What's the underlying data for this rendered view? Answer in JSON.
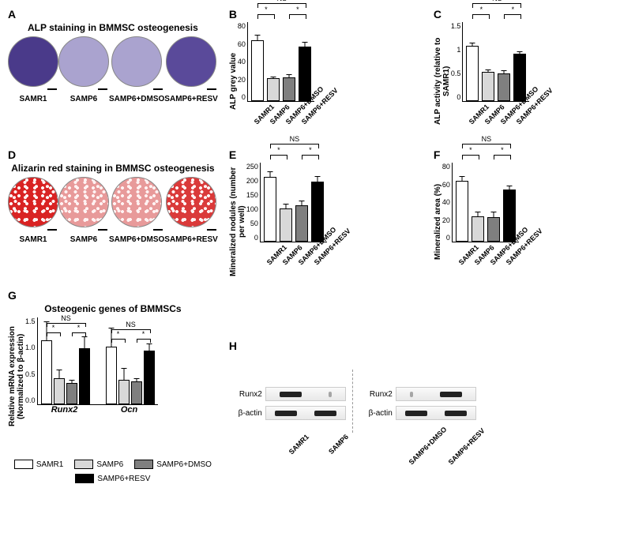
{
  "colors": {
    "samr1": "#ffffff",
    "samp6": "#d8d8d8",
    "samp6_dmso": "#7f7f7f",
    "samp6_resv": "#000000",
    "alp_purple_dark": "#4a3a8a",
    "alp_purple_light": "#aaa3cf",
    "alizarin_red": "#d92323",
    "alizarin_light": "#e89a9a"
  },
  "panelA": {
    "label": "A",
    "title": "ALP staining in BMMSC osteogenesis",
    "wells": [
      {
        "label": "SAMR1",
        "color": "#4a3a8a"
      },
      {
        "label": "SAMP6",
        "color": "#aaa3cf"
      },
      {
        "label": "SAMP6+DMSO",
        "color": "#aaa3cf"
      },
      {
        "label": "SAMP6+RESV",
        "color": "#5a4a9a"
      }
    ]
  },
  "panelB": {
    "label": "B",
    "ylabel": "ALP grey value",
    "ylim": [
      0,
      80
    ],
    "ytick_step": 20,
    "categories": [
      "SAMR1",
      "SAMP6",
      "SAMP6+DMSO",
      "SAMP6+RESV"
    ],
    "values": [
      62,
      23,
      24,
      55
    ],
    "errors": [
      6,
      3,
      4,
      6
    ],
    "colors": [
      "#ffffff",
      "#d8d8d8",
      "#7f7f7f",
      "#000000"
    ],
    "sig": [
      {
        "from": 0,
        "to": 1,
        "label": "*",
        "level": 0
      },
      {
        "from": 2,
        "to": 3,
        "label": "*",
        "level": 0
      },
      {
        "from": 0,
        "to": 3,
        "label": "NS",
        "level": 1
      }
    ]
  },
  "panelC": {
    "label": "C",
    "ylabel": "ALP activity\n(relative to SAMR1)",
    "ylim": [
      0,
      1.5
    ],
    "ytick_step": 0.5,
    "categories": [
      "SAMR1",
      "SAMP6",
      "SAMP6+DMSO",
      "SAMP6+RESV"
    ],
    "values": [
      1.05,
      0.55,
      0.52,
      0.9
    ],
    "errors": [
      0.08,
      0.07,
      0.08,
      0.06
    ],
    "colors": [
      "#ffffff",
      "#d8d8d8",
      "#7f7f7f",
      "#000000"
    ],
    "sig": [
      {
        "from": 0,
        "to": 1,
        "label": "*",
        "level": 0
      },
      {
        "from": 2,
        "to": 3,
        "label": "*",
        "level": 0
      },
      {
        "from": 0,
        "to": 3,
        "label": "NS",
        "level": 1
      }
    ]
  },
  "panelD": {
    "label": "D",
    "title": "Alizarin red staining in BMMSC osteogenesis",
    "wells": [
      {
        "label": "SAMR1",
        "color": "#d92323"
      },
      {
        "label": "SAMP6",
        "color": "#e89a9a"
      },
      {
        "label": "SAMP6+DMSO",
        "color": "#e89a9a"
      },
      {
        "label": "SAMP6+RESV",
        "color": "#da3a3a"
      }
    ]
  },
  "panelE": {
    "label": "E",
    "ylabel": "Mineralized nodules\n(number per well)",
    "ylim": [
      0,
      250
    ],
    "ytick_step": 50,
    "categories": [
      "SAMR1",
      "SAMP6",
      "SAMP6+DMSO",
      "SAMP6+RESV"
    ],
    "values": [
      205,
      105,
      115,
      190
    ],
    "errors": [
      20,
      18,
      18,
      20
    ],
    "colors": [
      "#ffffff",
      "#d8d8d8",
      "#7f7f7f",
      "#000000"
    ],
    "sig": [
      {
        "from": 0,
        "to": 1,
        "label": "*",
        "level": 0
      },
      {
        "from": 2,
        "to": 3,
        "label": "*",
        "level": 0
      },
      {
        "from": 0,
        "to": 3,
        "label": "NS",
        "level": 1
      }
    ]
  },
  "panelF": {
    "label": "F",
    "ylabel": "Mineralized area (%)",
    "ylim": [
      0,
      80
    ],
    "ytick_step": 20,
    "categories": [
      "SAMR1",
      "SAMP6",
      "SAMP6+DMSO",
      "SAMP6+RESV"
    ],
    "values": [
      62,
      26,
      25,
      53
    ],
    "errors": [
      5,
      5,
      6,
      5
    ],
    "colors": [
      "#ffffff",
      "#d8d8d8",
      "#7f7f7f",
      "#000000"
    ],
    "sig": [
      {
        "from": 0,
        "to": 1,
        "label": "*",
        "level": 0
      },
      {
        "from": 2,
        "to": 3,
        "label": "*",
        "level": 0
      },
      {
        "from": 0,
        "to": 3,
        "label": "NS",
        "level": 1
      }
    ]
  },
  "panelG": {
    "label": "G",
    "title": "Osteogenic genes of BMMSCs",
    "ylabel": "Relative mRNA expression\n(Normalized to β-actin)",
    "ylim": [
      0,
      1.5
    ],
    "ytick_step": 0.5,
    "groups": [
      "Runx2",
      "Ocn"
    ],
    "series": [
      "SAMR1",
      "SAMP6",
      "SAMP6+DMSO",
      "SAMP6+RESV"
    ],
    "series_colors": [
      "#ffffff",
      "#d8d8d8",
      "#7f7f7f",
      "#000000"
    ],
    "values": {
      "Runx2": [
        1.1,
        0.45,
        0.37,
        0.97
      ],
      "Ocn": [
        1.0,
        0.42,
        0.4,
        0.93
      ]
    },
    "errors": {
      "Runx2": [
        0.35,
        0.17,
        0.07,
        0.22
      ],
      "Ocn": [
        0.33,
        0.22,
        0.06,
        0.14
      ]
    },
    "sig_per_group": [
      {
        "from": 0,
        "to": 1,
        "label": "*",
        "level": 0
      },
      {
        "from": 2,
        "to": 3,
        "label": "*",
        "level": 0
      },
      {
        "from": 0,
        "to": 3,
        "label": "NS",
        "level": 1
      }
    ],
    "legend": [
      {
        "label": "SAMR1",
        "color": "#ffffff"
      },
      {
        "label": "SAMP6",
        "color": "#d8d8d8"
      },
      {
        "label": "SAMP6+DMSO",
        "color": "#7f7f7f"
      },
      {
        "label": "SAMP6+RESV",
        "color": "#000000"
      }
    ]
  },
  "panelH": {
    "label": "H",
    "rows": [
      "Runx2",
      "β-actin"
    ],
    "left": {
      "lanes": [
        "SAMR1",
        "SAMP6"
      ],
      "band_intensity": {
        "Runx2": [
          1.0,
          0.15
        ],
        "β-actin": [
          1.0,
          1.0
        ]
      }
    },
    "right": {
      "lanes": [
        "SAMP6+DMSO",
        "SAMP6+RESV"
      ],
      "band_intensity": {
        "Runx2": [
          0.15,
          1.0
        ],
        "β-actin": [
          1.0,
          1.0
        ]
      }
    }
  }
}
